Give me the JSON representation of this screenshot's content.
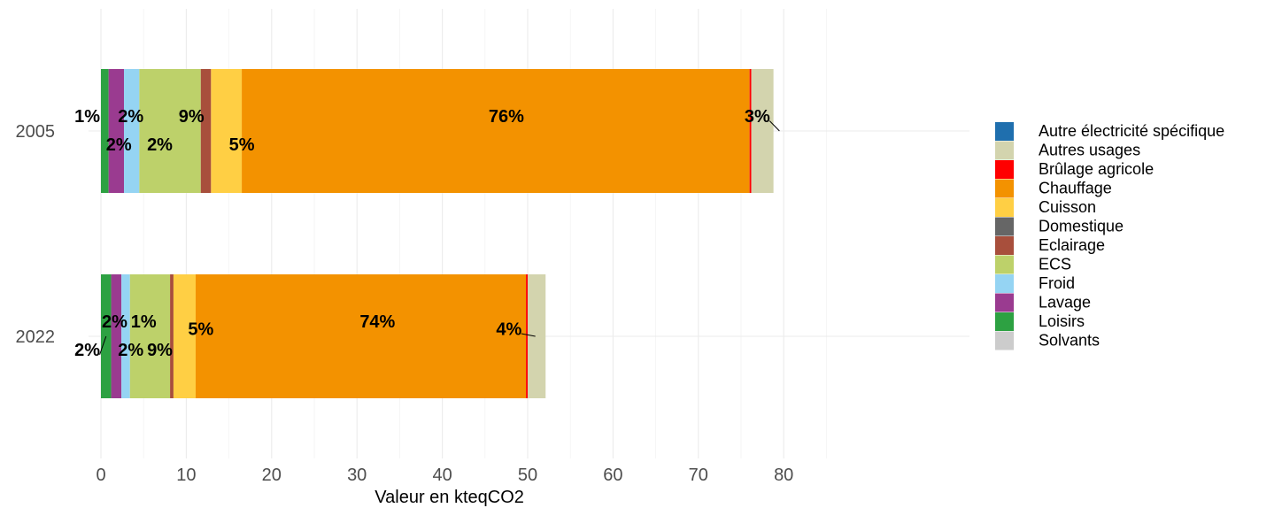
{
  "chart_data": {
    "type": "bar",
    "orientation": "horizontal",
    "stacked": true,
    "title": "",
    "xlabel": "Valeur en kteqCO2",
    "ylabel": "",
    "xlim": [
      0,
      80
    ],
    "x_ticks": [
      0,
      10,
      20,
      30,
      40,
      50,
      60,
      70,
      80
    ],
    "grid": true,
    "legend_position": "right",
    "categories": [
      "2005",
      "2022"
    ],
    "legend": [
      "Autre électricité spécifique",
      "Autres usages",
      "Brûlage agricole",
      "Chauffage",
      "Cuisson",
      "Domestique",
      "Eclairage",
      "ECS",
      "Froid",
      "Lavage",
      "Loisirs",
      "Solvants"
    ],
    "colors": {
      "Autre électricité spécifique": "#1f6fae",
      "Autres usages": "#d3d4ae",
      "Brûlage agricole": "#ff0000",
      "Chauffage": "#f39200",
      "Cuisson": "#ffcf44",
      "Domestique": "#666666",
      "Eclairage": "#a84f3c",
      "ECS": "#bdd16a",
      "Froid": "#95d4f3",
      "Lavage": "#9a3b90",
      "Loisirs": "#2da142",
      "Solvants": "#cccccc"
    },
    "stack_order": [
      "Loisirs",
      "Lavage",
      "Froid",
      "ECS",
      "Eclairage",
      "Cuisson",
      "Chauffage",
      "Brûlage agricole",
      "Autres usages"
    ],
    "series": [
      {
        "name": "Loisirs",
        "values": [
          0.9,
          1.2
        ]
      },
      {
        "name": "Lavage",
        "values": [
          1.8,
          1.2
        ]
      },
      {
        "name": "Froid",
        "values": [
          1.8,
          1.0
        ]
      },
      {
        "name": "ECS",
        "values": [
          7.2,
          4.7
        ]
      },
      {
        "name": "Eclairage",
        "values": [
          1.2,
          0.4
        ]
      },
      {
        "name": "Cuisson",
        "values": [
          3.6,
          2.6
        ]
      },
      {
        "name": "Chauffage",
        "values": [
          59.5,
          38.7
        ]
      },
      {
        "name": "Brûlage agricole",
        "values": [
          0.2,
          0.2
        ]
      },
      {
        "name": "Autres usages",
        "values": [
          2.6,
          2.1
        ]
      }
    ],
    "labels": [
      {
        "category": "2005",
        "text": "1%",
        "value_x": -1.6,
        "row_offset": -0.22,
        "leader": false
      },
      {
        "category": "2005",
        "text": "2%",
        "value_x": 2.1,
        "row_offset": 0.24,
        "leader": false
      },
      {
        "category": "2005",
        "text": "2%",
        "value_x": 3.5,
        "row_offset": -0.22,
        "leader": false
      },
      {
        "category": "2005",
        "text": "2%",
        "value_x": 6.9,
        "row_offset": 0.24,
        "leader": false
      },
      {
        "category": "2005",
        "text": "9%",
        "value_x": 10.6,
        "row_offset": -0.22,
        "leader": false
      },
      {
        "category": "2005",
        "text": "5%",
        "value_x": 16.5,
        "row_offset": 0.24,
        "leader": false
      },
      {
        "category": "2005",
        "text": "76%",
        "value_x": 47.5,
        "row_offset": -0.22,
        "leader": false
      },
      {
        "category": "2005",
        "text": "3%",
        "value_x": 76.9,
        "row_offset": -0.22,
        "leader": true,
        "leader_x": 79.5,
        "leader_offset": 0
      },
      {
        "category": "2022",
        "text": "2%",
        "value_x": -1.6,
        "row_offset": 0.24,
        "leader": true,
        "leader_x": 0.6,
        "leader_offset": 0
      },
      {
        "category": "2022",
        "text": "2%",
        "value_x": 1.6,
        "row_offset": -0.22,
        "leader": false
      },
      {
        "category": "2022",
        "text": "1%",
        "value_x": 5.0,
        "row_offset": -0.22,
        "leader": false
      },
      {
        "category": "2022",
        "text": "2%",
        "value_x": 3.5,
        "row_offset": 0.24,
        "leader": false
      },
      {
        "category": "2022",
        "text": "9%",
        "value_x": 6.9,
        "row_offset": 0.24,
        "leader": false
      },
      {
        "category": "2022",
        "text": "5%",
        "value_x": 11.7,
        "row_offset": -0.1,
        "leader": false
      },
      {
        "category": "2022",
        "text": "74%",
        "value_x": 32.4,
        "row_offset": -0.22,
        "leader": false
      },
      {
        "category": "2022",
        "text": "4%",
        "value_x": 47.8,
        "row_offset": -0.1,
        "leader": true,
        "leader_x": 50.9,
        "leader_offset": 0
      }
    ]
  }
}
